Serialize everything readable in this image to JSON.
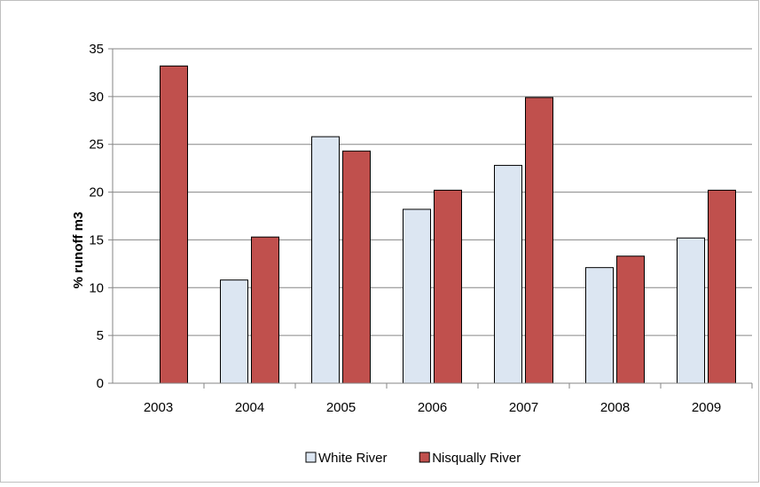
{
  "chart_data": {
    "type": "bar",
    "title": "",
    "xlabel": "",
    "ylabel": "% runoff m3",
    "ylim": [
      0,
      35
    ],
    "yticks": [
      0,
      5,
      10,
      15,
      20,
      25,
      30,
      35
    ],
    "grid": true,
    "legend_position": "bottom",
    "categories": [
      "2003",
      "2004",
      "2005",
      "2006",
      "2007",
      "2008",
      "2009"
    ],
    "series": [
      {
        "name": "White River",
        "color": "#dce6f2",
        "values": [
          null,
          10.8,
          25.8,
          18.2,
          22.8,
          12.1,
          15.2
        ]
      },
      {
        "name": "Nisqually River",
        "color": "#c0504d",
        "values": [
          33.2,
          15.3,
          24.3,
          20.2,
          29.9,
          13.3,
          20.2
        ]
      }
    ]
  }
}
